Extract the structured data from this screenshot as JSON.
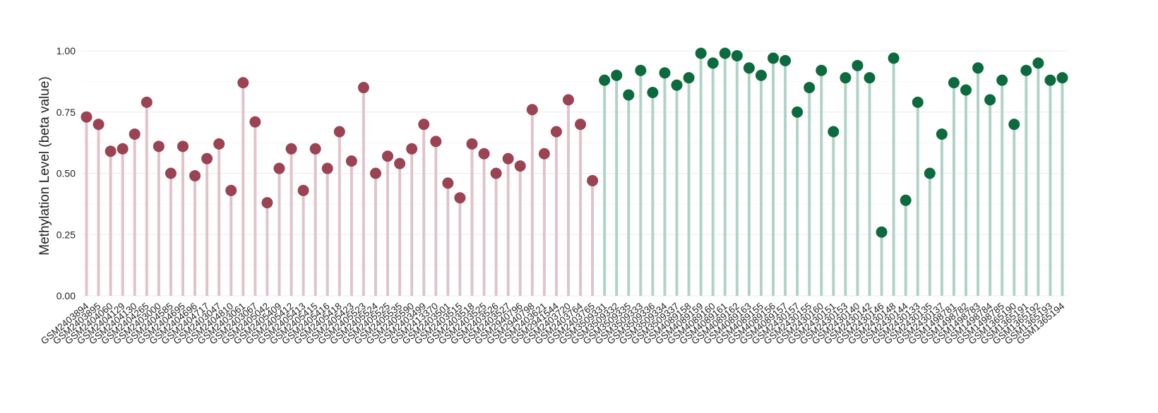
{
  "chart_data": {
    "type": "lollipop",
    "ylabel": "Methylation Level (beta value)",
    "xlabel": "",
    "ylim": [
      0,
      1
    ],
    "yticks": [
      "0.00",
      "0.25",
      "0.50",
      "0.75",
      "1.00"
    ],
    "grid": true,
    "legend": "none",
    "groups": [
      {
        "color": "#9B4352",
        "stem_color": "#E0C3CB",
        "points": [
          {
            "sample": "GSM2403894",
            "value": 0.73
          },
          {
            "sample": "GSM2403895",
            "value": 0.7
          },
          {
            "sample": "GSM2404060",
            "value": 0.59
          },
          {
            "sample": "GSM2404129",
            "value": 0.6
          },
          {
            "sample": "GSM2404130",
            "value": 0.66
          },
          {
            "sample": "GSM2404265",
            "value": 0.79
          },
          {
            "sample": "GSM2403000",
            "value": 0.61
          },
          {
            "sample": "GSM2404585",
            "value": 0.5
          },
          {
            "sample": "GSM2404695",
            "value": 0.61
          },
          {
            "sample": "GSM2404696",
            "value": 0.49
          },
          {
            "sample": "GSM2404717",
            "value": 0.56
          },
          {
            "sample": "GSM2403047",
            "value": 0.62
          },
          {
            "sample": "GSM2404810",
            "value": 0.43
          },
          {
            "sample": "GSM2403061",
            "value": 0.87
          },
          {
            "sample": "GSM2403067",
            "value": 0.71
          },
          {
            "sample": "GSM2405042",
            "value": 0.38
          },
          {
            "sample": "GSM2405409",
            "value": 0.52
          },
          {
            "sample": "GSM2405412",
            "value": 0.6
          },
          {
            "sample": "GSM2405413",
            "value": 0.43
          },
          {
            "sample": "GSM2405415",
            "value": 0.6
          },
          {
            "sample": "GSM2405416",
            "value": 0.52
          },
          {
            "sample": "GSM2405418",
            "value": 0.67
          },
          {
            "sample": "GSM2405423",
            "value": 0.55
          },
          {
            "sample": "GSM2405523",
            "value": 0.85
          },
          {
            "sample": "GSM2405524",
            "value": 0.5
          },
          {
            "sample": "GSM2405525",
            "value": 0.57
          },
          {
            "sample": "GSM2405535",
            "value": 0.54
          },
          {
            "sample": "GSM2405590",
            "value": 0.6
          },
          {
            "sample": "GSM2403499",
            "value": 0.7
          },
          {
            "sample": "GSM2413370",
            "value": 0.63
          },
          {
            "sample": "GSM2403501",
            "value": 0.46
          },
          {
            "sample": "GSM2403515",
            "value": 0.4
          },
          {
            "sample": "GSM2403518",
            "value": 0.62
          },
          {
            "sample": "GSM2403525",
            "value": 0.58
          },
          {
            "sample": "GSM2403526",
            "value": 0.5
          },
          {
            "sample": "GSM2403527",
            "value": 0.56
          },
          {
            "sample": "GSM2940796",
            "value": 0.53
          },
          {
            "sample": "GSM2940798",
            "value": 0.76
          },
          {
            "sample": "GSM2403621",
            "value": 0.58
          },
          {
            "sample": "GSM2941544",
            "value": 0.67
          },
          {
            "sample": "GSM2403720",
            "value": 0.8
          },
          {
            "sample": "GSM2403764",
            "value": 0.7
          },
          {
            "sample": "GSM2403765",
            "value": 0.47
          }
        ]
      },
      {
        "color": "#0B6B3F",
        "stem_color": "#B1D3C7",
        "points": [
          {
            "sample": "GSM3509331",
            "value": 0.88
          },
          {
            "sample": "GSM3509332",
            "value": 0.9
          },
          {
            "sample": "GSM3509335",
            "value": 0.82
          },
          {
            "sample": "GSM3509333",
            "value": 0.92
          },
          {
            "sample": "GSM3509336",
            "value": 0.83
          },
          {
            "sample": "GSM3509334",
            "value": 0.91
          },
          {
            "sample": "GSM3509337",
            "value": 0.86
          },
          {
            "sample": "GSM4089158",
            "value": 0.89
          },
          {
            "sample": "GSM4089159",
            "value": 0.99
          },
          {
            "sample": "GSM4089160",
            "value": 0.95
          },
          {
            "sample": "GSM4089161",
            "value": 0.99
          },
          {
            "sample": "GSM4089162",
            "value": 0.98
          },
          {
            "sample": "GSM4089163",
            "value": 0.93
          },
          {
            "sample": "GSM4089155",
            "value": 0.9
          },
          {
            "sample": "GSM4089156",
            "value": 0.97
          },
          {
            "sample": "GSM4089157",
            "value": 0.96
          },
          {
            "sample": "GSM2430157",
            "value": 0.75
          },
          {
            "sample": "GSM2430155",
            "value": 0.85
          },
          {
            "sample": "GSM2430160",
            "value": 0.92
          },
          {
            "sample": "GSM2430151",
            "value": 0.67
          },
          {
            "sample": "GSM2430153",
            "value": 0.89
          },
          {
            "sample": "GSM2430140",
            "value": 0.94
          },
          {
            "sample": "GSM2430142",
            "value": 0.89
          },
          {
            "sample": "GSM2430146",
            "value": 0.26
          },
          {
            "sample": "GSM2430148",
            "value": 0.97
          },
          {
            "sample": "GSM2430144",
            "value": 0.39
          },
          {
            "sample": "GSM2430133",
            "value": 0.79
          },
          {
            "sample": "GSM2430135",
            "value": 0.5
          },
          {
            "sample": "GSM2430137",
            "value": 0.66
          },
          {
            "sample": "GSM1498781",
            "value": 0.87
          },
          {
            "sample": "GSM1498782",
            "value": 0.84
          },
          {
            "sample": "GSM1498783",
            "value": 0.93
          },
          {
            "sample": "GSM1498784",
            "value": 0.8
          },
          {
            "sample": "GSM1498785",
            "value": 0.88
          },
          {
            "sample": "GSM1365190",
            "value": 0.7
          },
          {
            "sample": "GSM1365191",
            "value": 0.92
          },
          {
            "sample": "GSM1365192",
            "value": 0.95
          },
          {
            "sample": "GSM1365193",
            "value": 0.88
          },
          {
            "sample": "GSM1365194",
            "value": 0.89
          }
        ]
      }
    ]
  }
}
